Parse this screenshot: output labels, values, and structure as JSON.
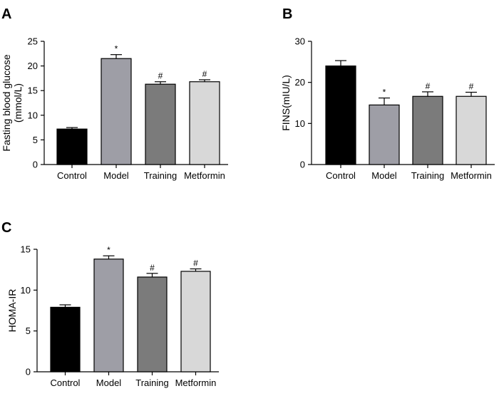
{
  "chart_data": [
    {
      "panel": "A",
      "type": "bar",
      "categories": [
        "Control",
        "Model",
        "Training",
        "Metformin"
      ],
      "values": [
        7.2,
        21.5,
        16.3,
        16.8
      ],
      "errors": [
        0.3,
        0.8,
        0.5,
        0.4
      ],
      "significance": [
        "",
        "*",
        "#",
        "#"
      ],
      "colors": [
        "#000000",
        "#9e9ea6",
        "#7b7b7b",
        "#d8d8d8"
      ],
      "ylabel_lines": [
        "Fasting blood glucose",
        "(mmol/L)"
      ],
      "xlabel": "",
      "ylim": [
        0,
        25
      ],
      "yticks": [
        "0",
        "5",
        "10",
        "15",
        "20",
        "25"
      ],
      "grid": false
    },
    {
      "panel": "B",
      "type": "bar",
      "categories": [
        "Control",
        "Model",
        "Training",
        "Metformin"
      ],
      "values": [
        24.0,
        14.5,
        16.6,
        16.6
      ],
      "errors": [
        1.3,
        1.7,
        1.1,
        1.0
      ],
      "significance": [
        "",
        "*",
        "#",
        "#"
      ],
      "colors": [
        "#000000",
        "#9e9ea6",
        "#7b7b7b",
        "#d8d8d8"
      ],
      "ylabel_lines": [
        "FINS(mIU/L)"
      ],
      "xlabel": "",
      "ylim": [
        0,
        30
      ],
      "yticks": [
        "0",
        "10",
        "20",
        "30"
      ],
      "grid": false
    },
    {
      "panel": "C",
      "type": "bar",
      "categories": [
        "Control",
        "Model",
        "Training",
        "Metformin"
      ],
      "values": [
        7.9,
        13.8,
        11.6,
        12.3
      ],
      "errors": [
        0.3,
        0.4,
        0.45,
        0.3
      ],
      "significance": [
        "",
        "*",
        "#",
        "#"
      ],
      "colors": [
        "#000000",
        "#9e9ea6",
        "#7b7b7b",
        "#d8d8d8"
      ],
      "ylabel_lines": [
        "HOMA-IR"
      ],
      "xlabel": "",
      "ylim": [
        0,
        15
      ],
      "yticks": [
        "0",
        "5",
        "10",
        "15"
      ],
      "grid": false
    }
  ]
}
